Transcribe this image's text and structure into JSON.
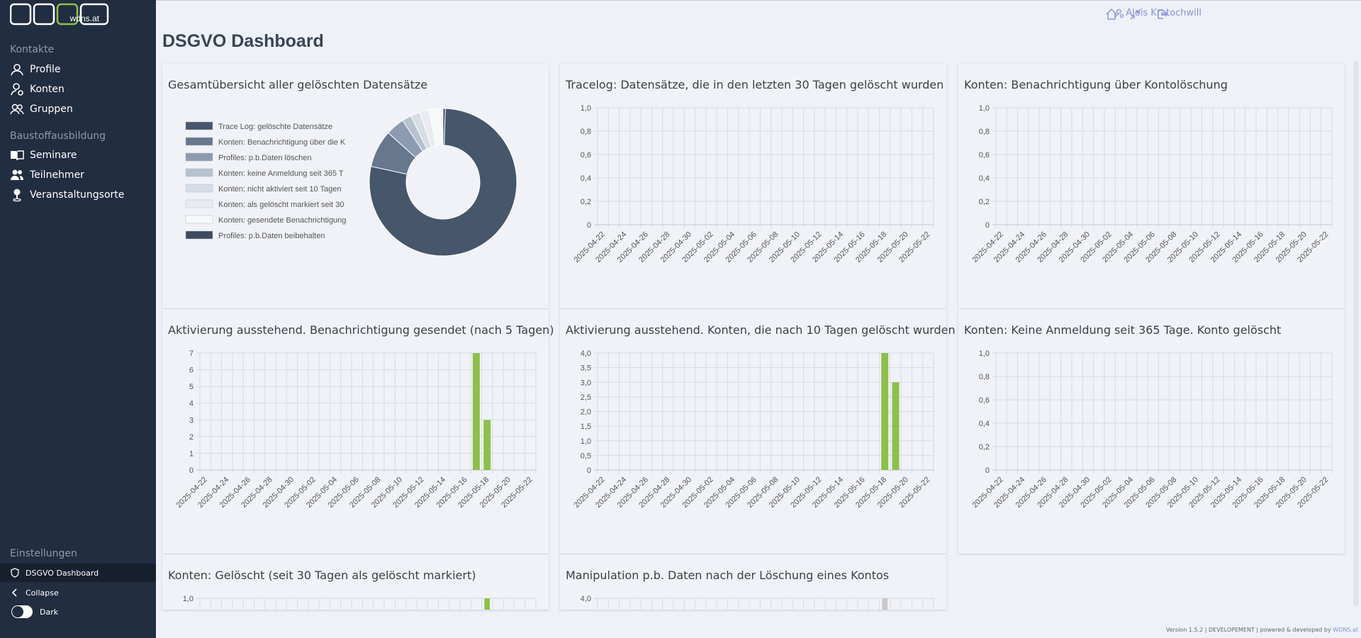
{
  "brand": {
    "logo_text": "wdns.at"
  },
  "sidebar": {
    "sections": [
      {
        "title": "Kontakte"
      },
      {
        "title": "Baustoffausbildung"
      },
      {
        "title": "Einstellungen"
      }
    ],
    "items": [
      {
        "label": "Profile",
        "icon": "user-icon"
      },
      {
        "label": "Konten",
        "icon": "user-gear-icon"
      },
      {
        "label": "Gruppen",
        "icon": "users-icon"
      },
      {
        "label": "Seminare",
        "icon": "book-open-icon"
      },
      {
        "label": "Teilnehmer",
        "icon": "users-icon"
      },
      {
        "label": "Veranstaltungsorte",
        "icon": "map-pin-icon"
      },
      {
        "label": "DSGVO Dashboard",
        "icon": "shield-icon"
      },
      {
        "label": "Collapse",
        "icon": "chevron-left-icon"
      },
      {
        "label": "Dark",
        "icon": "toggle-icon"
      }
    ]
  },
  "topbar": {
    "user_name": "Alois Kratochwill",
    "icons": [
      "home-icon",
      "collapse-arrows-icon",
      "logout-icon"
    ]
  },
  "page": {
    "title": "DSGVO Dashboard"
  },
  "cards": [
    {
      "title": "Gesamtübersicht aller gelöschten Datensätze"
    },
    {
      "title": "Tracelog: Datensätze, die in den letzten 30 Tagen gelöscht wurden"
    },
    {
      "title": "Konten: Benachrichtigung über Kontolöschung"
    },
    {
      "title": "Aktivierung ausstehend. Benachrichtigung gesendet (nach 5 Tagen)"
    },
    {
      "title": "Aktivierung ausstehend. Konten, die nach 10 Tagen gelöscht wurden"
    },
    {
      "title": "Konten: Keine Anmeldung seit 365 Tage. Konto gelöscht"
    },
    {
      "title": "Konten: Gelöscht (seit 30 Tagen als gelöscht markiert)"
    },
    {
      "title": "Manipulation p.b. Daten nach der Löschung eines Kontos"
    }
  ],
  "chart_data": [
    {
      "type": "pie",
      "legend": [
        {
          "label": "Trace Log: gelöschte Datensätze",
          "color": "#46566b"
        },
        {
          "label": "Konten: Benachrichtigung über die K",
          "color": "#66778e"
        },
        {
          "label": "Profiles: p.b.Daten löschen",
          "color": "#8c9bb0"
        },
        {
          "label": "Konten: keine Anmeldung seit 365 T",
          "color": "#b7c2cf"
        },
        {
          "label": "Konten: nicht aktiviert seit 10 Tagen",
          "color": "#d6dde5"
        },
        {
          "label": "Konten: als gelöscht markiert seit 30",
          "color": "#e8ecf1"
        },
        {
          "label": "Konten: gesendete Benachrichtigung",
          "color": "#f7f8fa"
        },
        {
          "label": "Profiles: p.b.Daten beibehalten",
          "color": "#3e4b5e"
        }
      ],
      "values": [
        76,
        8,
        4,
        2,
        2,
        2,
        3,
        0.5
      ],
      "order": [
        7,
        0,
        1,
        2,
        3,
        4,
        5,
        6
      ]
    },
    {
      "type": "bar",
      "categories": [
        "2025-04-22",
        "2025-04-24",
        "2025-04-26",
        "2025-04-28",
        "2025-04-30",
        "2025-05-02",
        "2025-05-04",
        "2025-05-06",
        "2025-05-08",
        "2025-05-10",
        "2025-05-12",
        "2025-05-14",
        "2025-05-16",
        "2025-05-18",
        "2025-05-20",
        "2025-05-22"
      ],
      "yticks": [
        "0",
        "0,2",
        "0,4",
        "0,6",
        "0,8",
        "1,0"
      ],
      "ylim": [
        0,
        1
      ],
      "bars": []
    },
    {
      "type": "bar",
      "categories": [
        "2025-04-22",
        "2025-04-24",
        "2025-04-26",
        "2025-04-28",
        "2025-04-30",
        "2025-05-02",
        "2025-05-04",
        "2025-05-06",
        "2025-05-08",
        "2025-05-10",
        "2025-05-12",
        "2025-05-14",
        "2025-05-16",
        "2025-05-18",
        "2025-05-20",
        "2025-05-22"
      ],
      "yticks": [
        "0",
        "0,2",
        "0,4",
        "0,6",
        "0,8",
        "1,0"
      ],
      "ylim": [
        0,
        1
      ],
      "bars": []
    },
    {
      "type": "bar",
      "categories": [
        "2025-04-22",
        "2025-04-24",
        "2025-04-26",
        "2025-04-28",
        "2025-04-30",
        "2025-05-02",
        "2025-05-04",
        "2025-05-06",
        "2025-05-08",
        "2025-05-10",
        "2025-05-12",
        "2025-05-14",
        "2025-05-16",
        "2025-05-18",
        "2025-05-20",
        "2025-05-22"
      ],
      "yticks": [
        "0",
        "1",
        "2",
        "3",
        "4",
        "5",
        "6",
        "7"
      ],
      "ylim": [
        0,
        7
      ],
      "bars": [
        {
          "date": "2025-05-17",
          "value": 7
        },
        {
          "date": "2025-05-18",
          "value": 3
        }
      ],
      "color": "#8dc04a"
    },
    {
      "type": "bar",
      "categories": [
        "2025-04-22",
        "2025-04-24",
        "2025-04-26",
        "2025-04-28",
        "2025-04-30",
        "2025-05-02",
        "2025-05-04",
        "2025-05-06",
        "2025-05-08",
        "2025-05-10",
        "2025-05-12",
        "2025-05-14",
        "2025-05-16",
        "2025-05-18",
        "2025-05-20",
        "2025-05-22"
      ],
      "yticks": [
        "0",
        "0,5",
        "1,0",
        "1,5",
        "2,0",
        "2,5",
        "3,0",
        "3,5",
        "4,0"
      ],
      "ylim": [
        0,
        4
      ],
      "bars": [
        {
          "date": "2025-05-18",
          "value": 4
        },
        {
          "date": "2025-05-19",
          "value": 3
        }
      ],
      "color": "#8dc04a"
    },
    {
      "type": "bar",
      "categories": [
        "2025-04-22",
        "2025-04-24",
        "2025-04-26",
        "2025-04-28",
        "2025-04-30",
        "2025-05-02",
        "2025-05-04",
        "2025-05-06",
        "2025-05-08",
        "2025-05-10",
        "2025-05-12",
        "2025-05-14",
        "2025-05-16",
        "2025-05-18",
        "2025-05-20",
        "2025-05-22"
      ],
      "yticks": [
        "0",
        "0,2",
        "0,4",
        "0,6",
        "0,8",
        "1,0"
      ],
      "ylim": [
        0,
        1
      ],
      "bars": []
    },
    {
      "type": "bar",
      "categories": [],
      "yticks": [
        "1,0"
      ],
      "ylim": [
        0,
        1
      ],
      "bars": [
        {
          "date": "2025-05-18",
          "value": 1
        }
      ],
      "color": "#8dc04a"
    },
    {
      "type": "bar",
      "categories": [],
      "yticks": [
        "4,0"
      ],
      "ylim": [
        0,
        4
      ],
      "bars": [
        {
          "date": "2025-05-18",
          "value": 4
        }
      ],
      "color": "#c8c8c8"
    }
  ],
  "footer": {
    "text": "Version 1.5.2 | DEVELOPEMENT | powered & developed by",
    "link": "WDNS.at"
  }
}
